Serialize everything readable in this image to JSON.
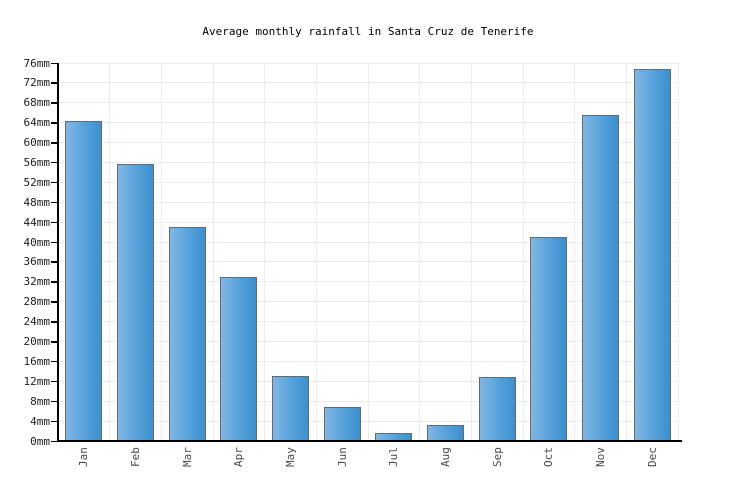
{
  "chart_data": {
    "type": "bar",
    "title": "Average monthly rainfall in Santa Cruz de Tenerife",
    "categories": [
      "Jan",
      "Feb",
      "Mar",
      "Apr",
      "May",
      "Jun",
      "Jul",
      "Aug",
      "Sep",
      "Oct",
      "Nov",
      "Dec"
    ],
    "values": [
      64.1,
      55.4,
      42.8,
      32.8,
      12.9,
      6.6,
      1.4,
      3.0,
      12.7,
      40.8,
      65.3,
      74.5
    ],
    "unit": "mm",
    "xlabel": "",
    "ylabel": "",
    "ylim": [
      0,
      76
    ],
    "ytick_step": 4,
    "ytick_labels": [
      "0mm",
      "4mm",
      "8mm",
      "12mm",
      "16mm",
      "20mm",
      "24mm",
      "28mm",
      "32mm",
      "36mm",
      "40mm",
      "44mm",
      "48mm",
      "52mm",
      "56mm",
      "60mm",
      "64mm",
      "68mm",
      "72mm",
      "76mm"
    ],
    "grid": true,
    "legend_position": "none",
    "colors": {
      "bar_fill_left": "#80b7e5",
      "bar_fill_right": "#3a90d0",
      "bar_border": "#696969",
      "axis": "#000000",
      "gridline": "#ececec",
      "ytick_label": "#1c1c1c",
      "xtick_label": "#4a4a4a",
      "title": "#000000",
      "background": "#ffffff"
    }
  }
}
